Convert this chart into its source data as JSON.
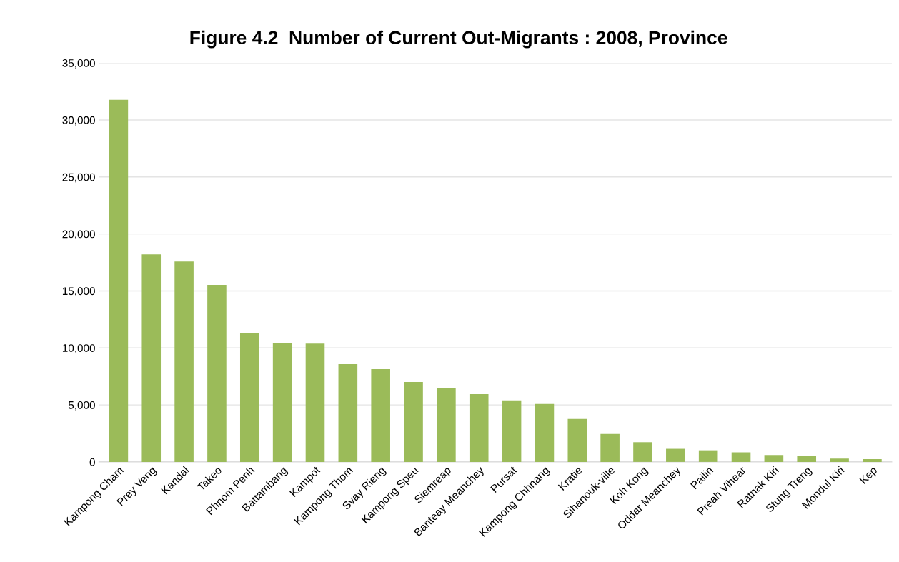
{
  "chart_data": {
    "type": "bar",
    "title": "Figure 4.2  Number of Current Out-Migrants : 2008, Province",
    "categories": [
      "Kampong Cham",
      "Prey Veng",
      "Kandal",
      "Takeo",
      "Phnom Penh",
      "Battambang",
      "Kampot",
      "Kampong Thom",
      "Svay Rieng",
      "Kampong Speu",
      "Siemreap",
      "Banteay Meanchey",
      "Pursat",
      "Kampong Chhnang",
      "Kratie",
      "Sihanouk-ville",
      "Koh Kong",
      "Oddar Meanchey",
      "Pailin",
      "Preah Vihear",
      "Ratnak Kiri",
      "Stung Treng",
      "Mondul Kiri",
      "Kep"
    ],
    "values": [
      31770,
      18200,
      17580,
      15530,
      11320,
      10450,
      10380,
      8570,
      8130,
      7010,
      6450,
      5940,
      5390,
      5080,
      3770,
      2460,
      1730,
      1150,
      1020,
      840,
      600,
      520,
      290,
      240
    ],
    "color": "#9bbb59",
    "ylim": [
      0,
      35000
    ],
    "yticks": [
      {
        "value": 0,
        "label": "0"
      },
      {
        "value": 5000,
        "label": "5,000"
      },
      {
        "value": 10000,
        "label": "10,000"
      },
      {
        "value": 15000,
        "label": "15,000"
      },
      {
        "value": 20000,
        "label": "20,000"
      },
      {
        "value": 25000,
        "label": "25,000"
      },
      {
        "value": 30000,
        "label": "30,000"
      },
      {
        "value": 35000,
        "label": "35,000"
      }
    ],
    "grid": "y"
  }
}
